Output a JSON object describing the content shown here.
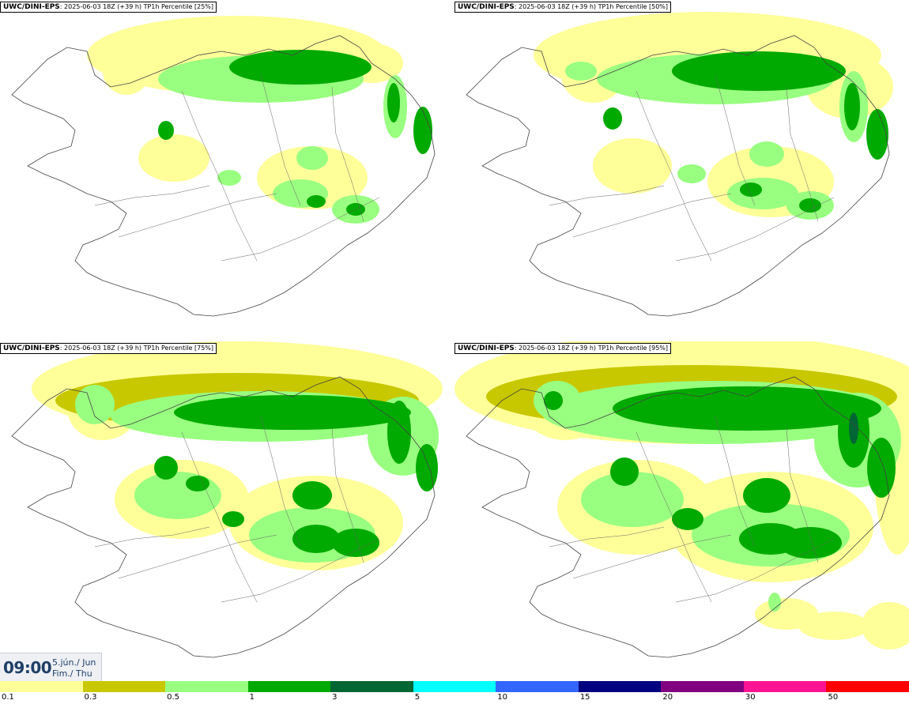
{
  "panels": [
    {
      "model": "UWC/DINI-EPS",
      "run": ": 2025-06-03 18Z (+39 h)",
      "field": "TP1h Percentile [25%]",
      "percentile": 25
    },
    {
      "model": "UWC/DINI-EPS",
      "run": ": 2025-06-03 18Z (+39 h)",
      "field": "TP1h Percentile [50%]",
      "percentile": 50
    },
    {
      "model": "UWC/DINI-EPS",
      "run": ": 2025-06-03 18Z (+39 h)",
      "field": "TP1h Percentile [75%]",
      "percentile": 75
    },
    {
      "model": "UWC/DINI-EPS",
      "run": ": 2025-06-03 18Z (+39 h)",
      "field": "TP1h Percentile [95%]",
      "percentile": 95
    }
  ],
  "valid_time": {
    "clock": "09:00",
    "date_line1": "5.jún./ Jun",
    "date_line2": "Fim./ Thu"
  },
  "legend": {
    "colors": [
      "#ffff99",
      "#c8c800",
      "#99ff80",
      "#00aa00",
      "#006633",
      "#00ffff",
      "#3366ff",
      "#000080",
      "#800080",
      "#ff1493",
      "#ff0000"
    ],
    "ticks": [
      "0.1",
      "0.3",
      "0.5",
      "1",
      "3",
      "5",
      "10",
      "15",
      "20",
      "30",
      "50"
    ]
  }
}
